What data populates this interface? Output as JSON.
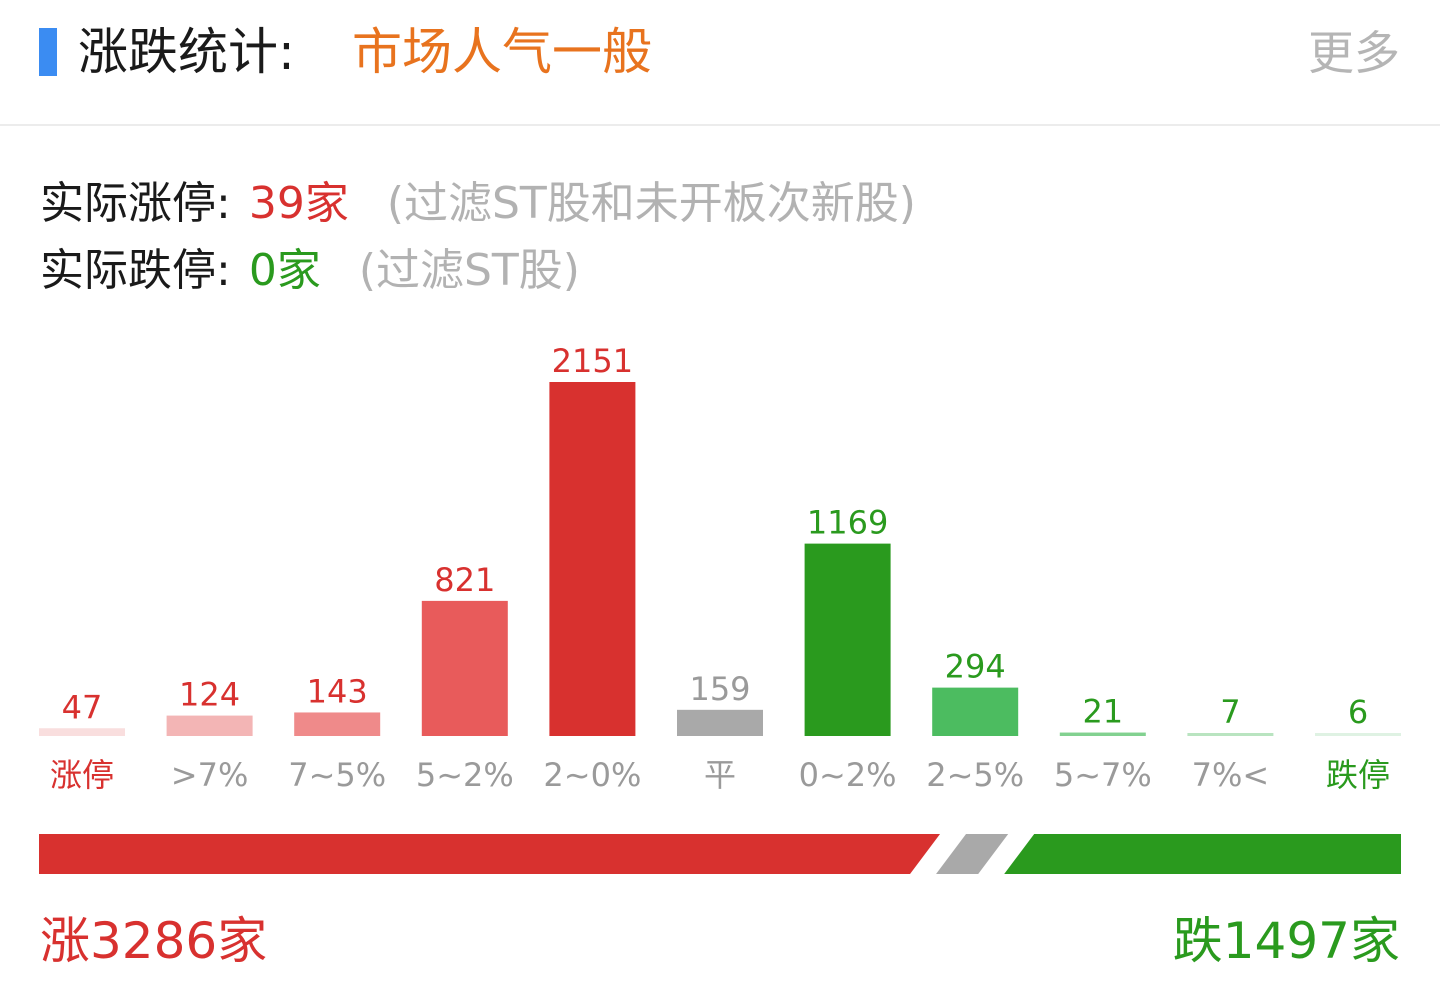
{
  "header": {
    "title": "涨跌统计:",
    "status": "市场人气一般",
    "more_label": "更多"
  },
  "stats": {
    "limit_up": {
      "label": "实际涨停:",
      "value": "39家",
      "note": "(过滤ST股和未开板次新股)"
    },
    "limit_down": {
      "label": "实际跌停:",
      "value": "0家",
      "note": "(过滤ST股)"
    }
  },
  "colors": {
    "accent": "#3b8cf2",
    "status": "#e8731e",
    "up": "#d8312f",
    "down": "#2a9a1e",
    "flat": "#a9a9a9",
    "label_gray": "#9a9a9a"
  },
  "chart_data": {
    "type": "bar",
    "title": "",
    "xlabel": "",
    "ylabel": "",
    "categories": [
      "涨停",
      ">7%",
      "7~5%",
      "5~2%",
      "2~0%",
      "平",
      "0~2%",
      "2~5%",
      "5~7%",
      "7%<",
      "跌停"
    ],
    "values": [
      47,
      124,
      143,
      821,
      2151,
      159,
      1169,
      294,
      21,
      7,
      6
    ],
    "value_labels": [
      "47",
      "124",
      "143",
      "821",
      "2151",
      "159",
      "1169",
      "294",
      "21",
      "7",
      "6"
    ],
    "bar_colors": [
      "#f9dede",
      "#f3b5b5",
      "#ef8a8a",
      "#e85b5b",
      "#d8312f",
      "#a9a9a9",
      "#2a9a1e",
      "#4cbc60",
      "#82d190",
      "#b9e4c0",
      "#dff2e3"
    ],
    "value_label_colors": [
      "#d8312f",
      "#d8312f",
      "#d8312f",
      "#d8312f",
      "#d8312f",
      "#9a9a9a",
      "#2a9a1e",
      "#2a9a1e",
      "#2a9a1e",
      "#2a9a1e",
      "#2a9a1e"
    ],
    "category_label_colors": [
      "#d8312f",
      "#9a9a9a",
      "#9a9a9a",
      "#9a9a9a",
      "#9a9a9a",
      "#9a9a9a",
      "#9a9a9a",
      "#9a9a9a",
      "#9a9a9a",
      "#9a9a9a",
      "#2a9a1e"
    ],
    "grid": false,
    "legend": "none"
  },
  "ratio": {
    "up": 3286,
    "flat": 159,
    "down": 1497
  },
  "summary": {
    "up_text": "涨3286家",
    "down_text": "跌1497家"
  }
}
